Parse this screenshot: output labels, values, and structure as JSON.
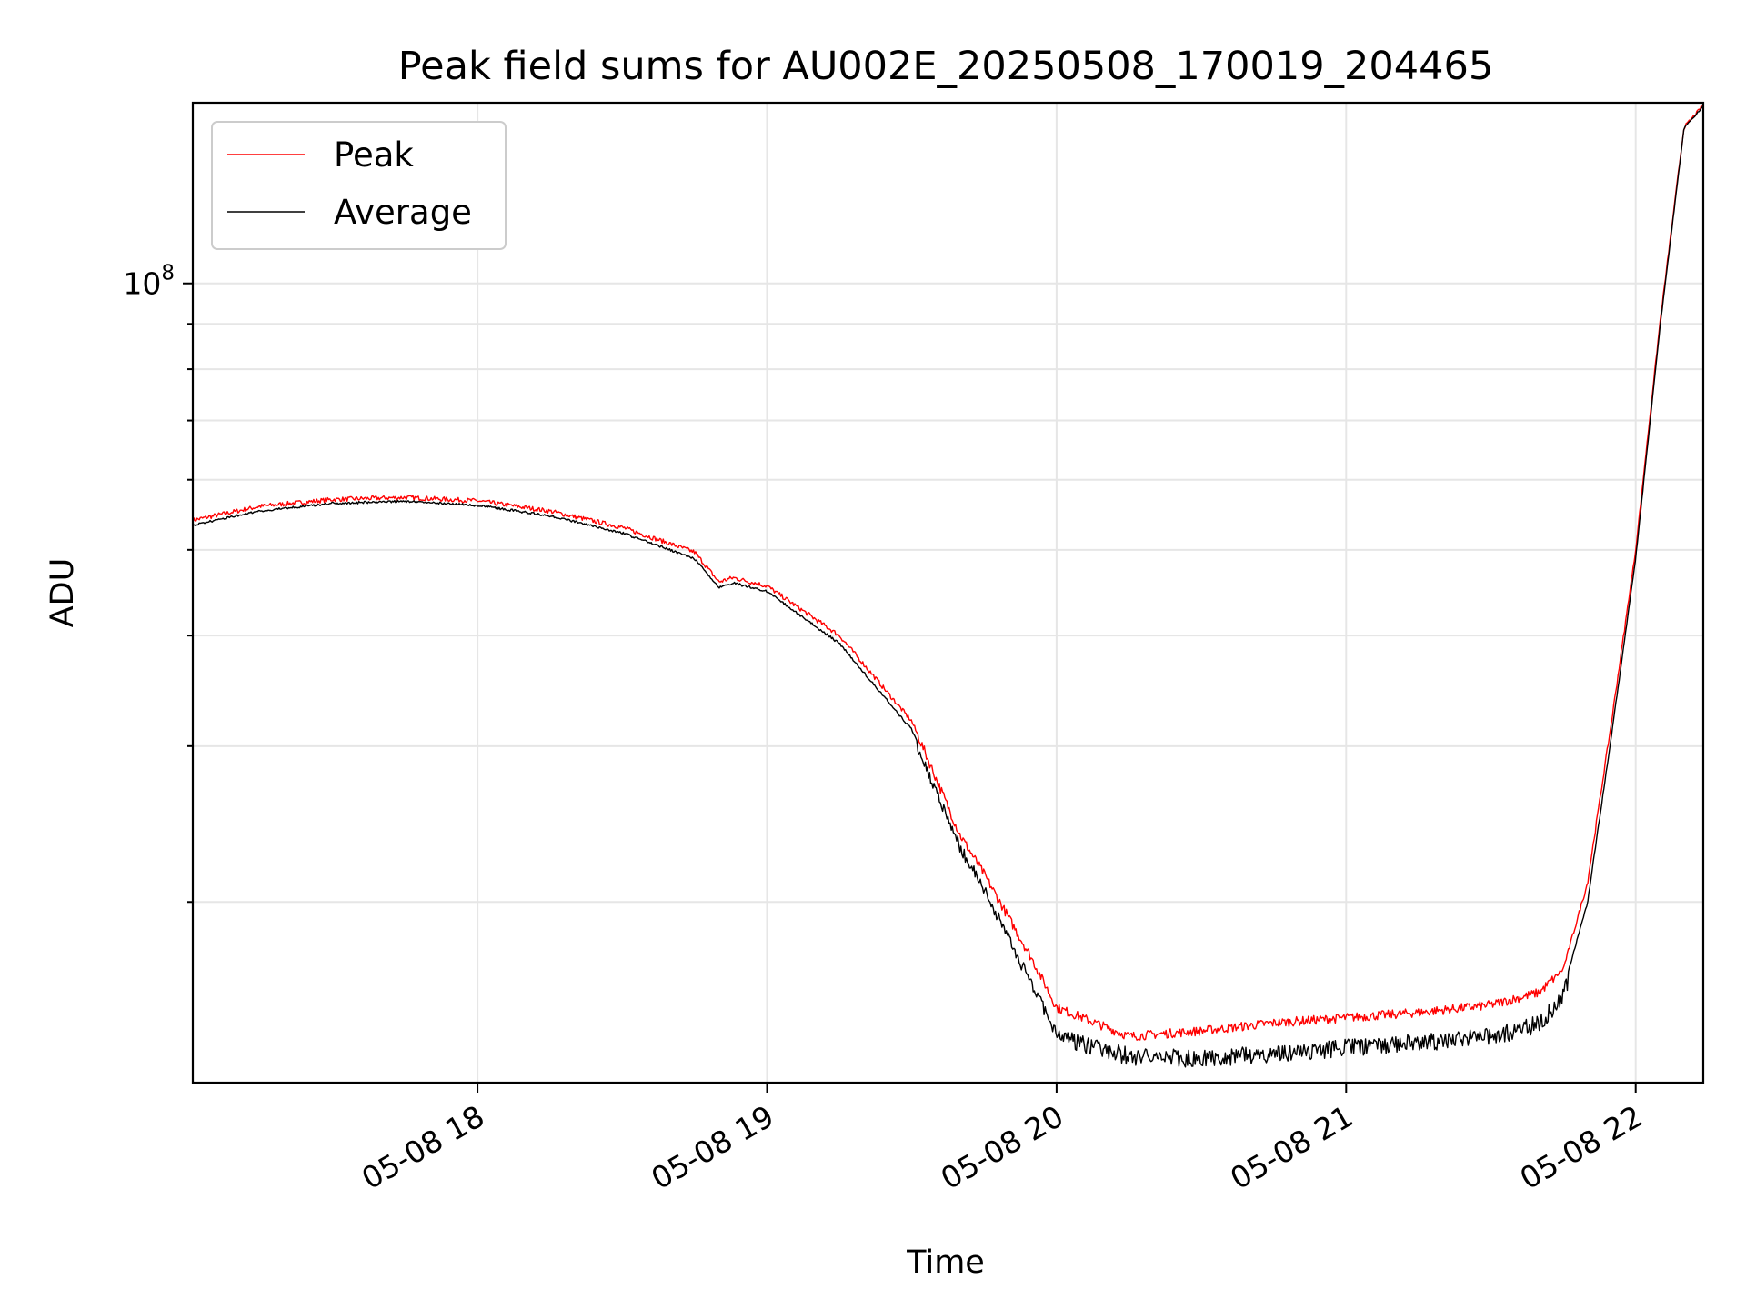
{
  "chart_data": {
    "type": "line",
    "title": "Peak field sums for AU002E_20250508_170019_204465",
    "xlabel": "Time",
    "ylabel": "ADU",
    "x_ticks": [
      "05-08 18",
      "05-08 19",
      "05-08 20",
      "05-08 21",
      "05-08 22"
    ],
    "y_ticks": [
      {
        "value": 100000000,
        "base": "10",
        "exp": "8"
      }
    ],
    "y_scale": "log",
    "x_range": [
      "2025-05-08 17:01",
      "2025-05-08 22:14"
    ],
    "ylim": [
      12500000,
      160000000
    ],
    "grid": true,
    "legend_position": "upper-left",
    "series": [
      {
        "name": "Peak",
        "color": "#ff0000",
        "points": [
          [
            "2025-05-08 17:01",
            54000000
          ],
          [
            "2025-05-08 17:15",
            56000000
          ],
          [
            "2025-05-08 17:30",
            57000000
          ],
          [
            "2025-05-08 17:45",
            57300000
          ],
          [
            "2025-05-08 18:00",
            56800000
          ],
          [
            "2025-05-08 18:15",
            55300000
          ],
          [
            "2025-05-08 18:30",
            53000000
          ],
          [
            "2025-05-08 18:45",
            49700000
          ],
          [
            "2025-05-08 18:50",
            46000000
          ],
          [
            "2025-05-08 18:53",
            46500000
          ],
          [
            "2025-05-08 19:00",
            45500000
          ],
          [
            "2025-05-08 19:15",
            40000000
          ],
          [
            "2025-05-08 19:30",
            32000000
          ],
          [
            "2025-05-08 19:40",
            23800000
          ],
          [
            "2025-05-08 19:45",
            21500000
          ],
          [
            "2025-05-08 19:55",
            17200000
          ],
          [
            "2025-05-08 20:00",
            15200000
          ],
          [
            "2025-05-08 20:15",
            14100000
          ],
          [
            "2025-05-08 20:30",
            14300000
          ],
          [
            "2025-05-08 20:45",
            14600000
          ],
          [
            "2025-05-08 21:00",
            14800000
          ],
          [
            "2025-05-08 21:15",
            15000000
          ],
          [
            "2025-05-08 21:30",
            15300000
          ],
          [
            "2025-05-08 21:40",
            15800000
          ],
          [
            "2025-05-08 21:45",
            16800000
          ],
          [
            "2025-05-08 21:50",
            21000000
          ],
          [
            "2025-05-08 21:55",
            32000000
          ],
          [
            "2025-05-08 22:00",
            50000000
          ],
          [
            "2025-05-08 22:05",
            90000000
          ],
          [
            "2025-05-08 22:10",
            150000000
          ],
          [
            "2025-05-08 22:14",
            159000000
          ]
        ]
      },
      {
        "name": "Average",
        "color": "#000000",
        "points": [
          [
            "2025-05-08 17:01",
            53500000
          ],
          [
            "2025-05-08 17:15",
            55500000
          ],
          [
            "2025-05-08 17:30",
            56600000
          ],
          [
            "2025-05-08 17:45",
            56900000
          ],
          [
            "2025-05-08 18:00",
            56300000
          ],
          [
            "2025-05-08 18:15",
            54800000
          ],
          [
            "2025-05-08 18:30",
            52400000
          ],
          [
            "2025-05-08 18:45",
            49000000
          ],
          [
            "2025-05-08 18:50",
            45500000
          ],
          [
            "2025-05-08 18:53",
            46000000
          ],
          [
            "2025-05-08 19:00",
            45000000
          ],
          [
            "2025-05-08 19:15",
            39300000
          ],
          [
            "2025-05-08 19:30",
            31400000
          ],
          [
            "2025-05-08 19:40",
            23400000
          ],
          [
            "2025-05-08 19:45",
            21000000
          ],
          [
            "2025-05-08 19:55",
            16300000
          ],
          [
            "2025-05-08 20:00",
            14400000
          ],
          [
            "2025-05-08 20:15",
            13700000
          ],
          [
            "2025-05-08 20:30",
            13600000
          ],
          [
            "2025-05-08 20:45",
            13800000
          ],
          [
            "2025-05-08 21:00",
            14000000
          ],
          [
            "2025-05-08 21:15",
            14200000
          ],
          [
            "2025-05-08 21:30",
            14400000
          ],
          [
            "2025-05-08 21:40",
            14900000
          ],
          [
            "2025-05-08 21:45",
            16000000
          ],
          [
            "2025-05-08 21:50",
            20000000
          ],
          [
            "2025-05-08 21:55",
            31000000
          ],
          [
            "2025-05-08 22:00",
            49000000
          ],
          [
            "2025-05-08 22:05",
            89000000
          ],
          [
            "2025-05-08 22:10",
            150000000
          ],
          [
            "2025-05-08 22:14",
            159000000
          ]
        ]
      }
    ]
  }
}
